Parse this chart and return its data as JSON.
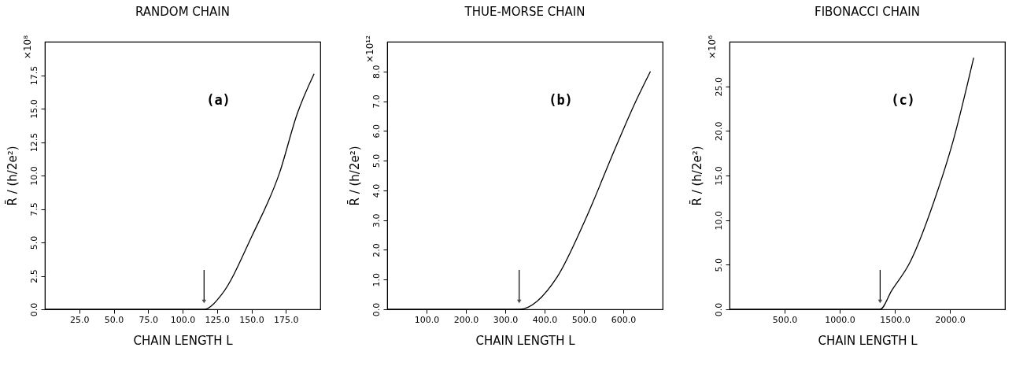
{
  "chart_data": [
    {
      "type": "line",
      "title": "RANDOM CHAIN",
      "xlabel": "CHAIN LENGTH L",
      "ylabel": "R̄ / (h/2e²)",
      "annotations": [
        "(a)",
        "×10⁸"
      ],
      "x": [
        0,
        115.6,
        128.5,
        150.4,
        170.4,
        183.2,
        195.5
      ],
      "values": [
        0,
        0,
        1.13,
        5.49,
        10.2,
        14.6,
        17.6
      ],
      "color": "#000000",
      "xlim": [
        0,
        200
      ],
      "ylim": [
        0,
        20
      ],
      "xticks": [
        {
          "value": 25,
          "label": "25.0"
        },
        {
          "value": 50,
          "label": "50.0"
        },
        {
          "value": 75,
          "label": "75.0"
        },
        {
          "value": 100,
          "label": "100.0"
        },
        {
          "value": 125,
          "label": "125.0"
        },
        {
          "value": 150,
          "label": "150.0"
        },
        {
          "value": 175,
          "label": "175.0"
        }
      ],
      "yticks": [
        {
          "value": 0,
          "label": "0.0"
        },
        2.5,
        {
          "value": 5,
          "label": "5.0"
        },
        7.5,
        {
          "value": 10,
          "label": "10.0"
        },
        12.5,
        {
          "value": 15,
          "label": "15.0"
        },
        17.5
      ],
      "grid": false,
      "marker": "none"
    },
    {
      "type": "line",
      "title": "THUE-MORSE CHAIN",
      "xlabel": "CHAIN LENGTH L",
      "ylabel": "R̄ / (h/2e²)",
      "annotations": [
        "(b)",
        "×10¹²"
      ],
      "x": [
        0,
        335.5,
        432,
        503,
        581,
        632,
        669
      ],
      "values": [
        0,
        0,
        1.09,
        3.0,
        5.46,
        7.0,
        8.0
      ],
      "color": "#000000",
      "xlim": [
        0,
        700
      ],
      "ylim": [
        0,
        9
      ],
      "xticks": [
        {
          "value": 100,
          "label": "100.0"
        },
        {
          "value": 200,
          "label": "200.0"
        },
        {
          "value": 300,
          "label": "300.0"
        },
        {
          "value": 400,
          "label": "400.0"
        },
        {
          "value": 500,
          "label": "500.0"
        },
        {
          "value": 600,
          "label": "600.0"
        }
      ],
      "yticks": [
        {
          "value": 0,
          "label": "0.0"
        },
        {
          "value": 1,
          "label": "1.0"
        },
        {
          "value": 2,
          "label": "2.0"
        },
        {
          "value": 3,
          "label": "3.0"
        },
        {
          "value": 4,
          "label": "4.0"
        },
        {
          "value": 5,
          "label": "5.0"
        },
        {
          "value": 6,
          "label": "6.0"
        },
        {
          "value": 7,
          "label": "7.0"
        },
        {
          "value": 8,
          "label": "8.0"
        }
      ],
      "grid": false,
      "marker": "none"
    },
    {
      "type": "line",
      "title": "FIBONACCI CHAIN",
      "xlabel": "CHAIN LENGTH L",
      "ylabel": "R̄ / (h/2e²)",
      "annotations": [
        "(c)",
        "×10⁶"
      ],
      "x": [
        0,
        1367,
        1472,
        1635,
        1867,
        2030,
        2216
      ],
      "values": [
        0,
        0,
        2.1,
        5.2,
        12.5,
        18.9,
        28.2
      ],
      "color": "#000000",
      "xlim": [
        0,
        2500
      ],
      "ylim": [
        0,
        30
      ],
      "xticks": [
        {
          "value": 500,
          "label": "500.0"
        },
        {
          "value": 1000,
          "label": "1000.0"
        },
        {
          "value": 1500,
          "label": "1500.0"
        },
        {
          "value": 2000,
          "label": "2000.0"
        }
      ],
      "yticks": [
        {
          "value": 0,
          "label": "0.0"
        },
        {
          "value": 5,
          "label": "5.0"
        },
        {
          "value": 10,
          "label": "10.0"
        },
        {
          "value": 15,
          "label": "15.0"
        },
        {
          "value": 20,
          "label": "20.0"
        },
        {
          "value": 25,
          "label": "25.0"
        }
      ],
      "grid": false,
      "marker": "none"
    }
  ]
}
